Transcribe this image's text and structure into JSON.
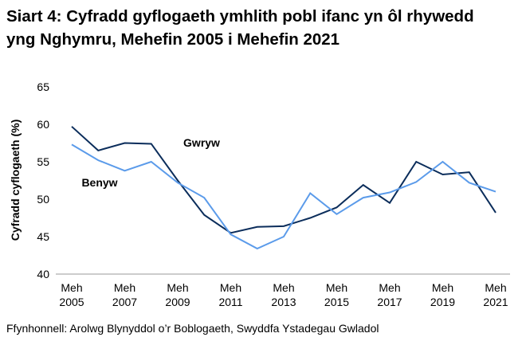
{
  "chart_data": {
    "type": "line",
    "title": "Siart 4: Cyfradd gyflogaeth ymhlith pobl ifanc yn ôl rhywedd yng Nghymru, Mehefin 2005 i Mehefin 2021",
    "y_label": "Cyfradd cyflogaeth (%)",
    "source": "Ffynhonnell: Arolwg Blynyddol o’r Boblogaeth, Swyddfa Ystadegau Gwladol",
    "categories": [
      "Meh 2005",
      null,
      "Meh 2007",
      null,
      "Meh 2009",
      null,
      "Meh 2011",
      null,
      "Meh 2013",
      null,
      "Meh 2015",
      null,
      "Meh 2017",
      null,
      "Meh 2019",
      null,
      "Meh 2021"
    ],
    "series": [
      {
        "name": "Gwryw",
        "color": "#0b2d5b",
        "values": [
          59.7,
          56.5,
          57.5,
          57.4,
          52.5,
          47.9,
          45.5,
          46.3,
          46.4,
          47.5,
          48.9,
          51.9,
          49.5,
          55.0,
          53.3,
          53.6,
          48.2
        ]
      },
      {
        "name": "Benyw",
        "color": "#5b9bea",
        "values": [
          57.3,
          55.2,
          53.8,
          55.0,
          52.2,
          50.2,
          45.3,
          43.4,
          45.0,
          50.8,
          48.0,
          50.2,
          50.9,
          52.3,
          55.0,
          52.2,
          51.0
        ]
      }
    ],
    "ylim": [
      40,
      65
    ],
    "yticks": [
      40,
      45,
      50,
      55,
      60,
      65
    ],
    "grid": false
  }
}
